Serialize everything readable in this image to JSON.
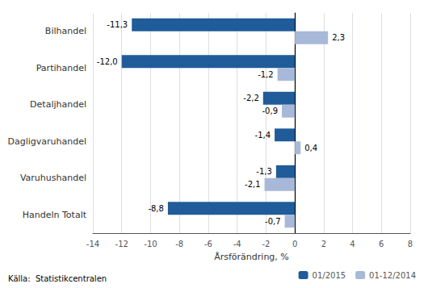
{
  "chart_data": {
    "type": "bar",
    "orientation": "horizontal",
    "categories": [
      "Bilhandel",
      "Partihandel",
      "Detaljhandel",
      "Dagligvaruhandel",
      "Varuhushandel",
      "Handeln Totalt"
    ],
    "series": [
      {
        "name": "01/2015",
        "color": "#1f5c99",
        "values": [
          -11.3,
          -12.0,
          -2.2,
          -1.4,
          -1.3,
          -8.8
        ],
        "value_labels": [
          "-11,3",
          "-12,0",
          "-2,2",
          "-1,4",
          "-1,3",
          "-8,8"
        ]
      },
      {
        "name": "01-12/2014",
        "color": "#a8b8d8",
        "values": [
          2.3,
          -1.2,
          -0.9,
          0.4,
          -2.1,
          -0.7
        ],
        "value_labels": [
          "2,3",
          "-1,2",
          "-0,9",
          "0,4",
          "-2,1",
          "-0,7"
        ]
      }
    ],
    "xlabel": "Årsförändring, %",
    "xlim": [
      -14,
      8
    ],
    "xticks": [
      -14,
      -12,
      -10,
      -8,
      -6,
      -4,
      -2,
      0,
      2,
      4,
      6,
      8
    ],
    "data_labels": true,
    "grid": true,
    "legend": "lower right",
    "annotations": [
      "Källa:  Statistikcentralen"
    ]
  }
}
